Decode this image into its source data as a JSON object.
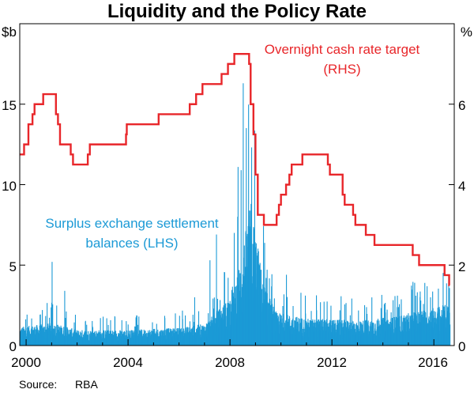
{
  "chart_data": {
    "type": "line+bar",
    "title": "Liquidity and the Policy Rate",
    "left_axis": {
      "unit": "$b",
      "ylim": [
        0,
        20
      ],
      "ticks": [
        0,
        5,
        10,
        15
      ],
      "tick_labels": [
        "0",
        "5",
        "10",
        "15"
      ]
    },
    "right_axis": {
      "unit": "%",
      "ylim": [
        0,
        8
      ],
      "ticks": [
        0,
        2,
        4,
        6
      ],
      "tick_labels": [
        "0",
        "2",
        "4",
        "6"
      ]
    },
    "x_axis": {
      "range": [
        1999.75,
        2016.8
      ],
      "ticks": [
        2000,
        2004,
        2008,
        2012,
        2016
      ],
      "tick_labels": [
        "2000",
        "2004",
        "2008",
        "2012",
        "2016"
      ]
    },
    "annotations": {
      "rate_line1": "Overnight cash rate target",
      "rate_line2": "(RHS)",
      "balances_line1": "Surplus exchange settlement",
      "balances_line2": "balances (LHS)"
    },
    "source_label": "Source:",
    "source_value": "RBA",
    "series": [
      {
        "name": "Overnight cash rate target",
        "axis": "right",
        "color": "#e8262a",
        "type": "step",
        "points": [
          [
            1999.75,
            4.75
          ],
          [
            1999.92,
            5.0
          ],
          [
            2000.09,
            5.5
          ],
          [
            2000.25,
            5.75
          ],
          [
            2000.33,
            6.0
          ],
          [
            2000.67,
            6.25
          ],
          [
            2001.17,
            5.75
          ],
          [
            2001.25,
            5.5
          ],
          [
            2001.33,
            5.0
          ],
          [
            2001.75,
            4.75
          ],
          [
            2001.84,
            4.5
          ],
          [
            2002.42,
            4.75
          ],
          [
            2002.5,
            5.0
          ],
          [
            2003.92,
            5.25
          ],
          [
            2003.95,
            5.5
          ],
          [
            2005.2,
            5.75
          ],
          [
            2006.42,
            6.0
          ],
          [
            2006.67,
            6.25
          ],
          [
            2006.92,
            6.5
          ],
          [
            2007.67,
            6.75
          ],
          [
            2007.92,
            7.0
          ],
          [
            2008.17,
            7.25
          ],
          [
            2008.75,
            7.0
          ],
          [
            2008.81,
            6.0
          ],
          [
            2008.92,
            5.25
          ],
          [
            2009.0,
            4.25
          ],
          [
            2009.09,
            3.25
          ],
          [
            2009.33,
            3.0
          ],
          [
            2009.83,
            3.25
          ],
          [
            2009.92,
            3.5
          ],
          [
            2010.0,
            3.75
          ],
          [
            2010.2,
            4.0
          ],
          [
            2010.33,
            4.25
          ],
          [
            2010.42,
            4.5
          ],
          [
            2010.84,
            4.75
          ],
          [
            2011.84,
            4.5
          ],
          [
            2011.92,
            4.25
          ],
          [
            2012.42,
            3.75
          ],
          [
            2012.5,
            3.5
          ],
          [
            2012.83,
            3.25
          ],
          [
            2012.92,
            3.0
          ],
          [
            2013.33,
            2.75
          ],
          [
            2013.67,
            2.5
          ],
          [
            2015.17,
            2.25
          ],
          [
            2015.42,
            2.0
          ],
          [
            2016.42,
            1.75
          ],
          [
            2016.6,
            1.5
          ]
        ]
      },
      {
        "name": "Surplus exchange settlement balances",
        "axis": "left",
        "color": "#1c9ad6",
        "type": "bar",
        "base_profile": [
          [
            1999.75,
            0.9
          ],
          [
            2000.5,
            1.0
          ],
          [
            2001.0,
            1.1
          ],
          [
            2002.0,
            0.75
          ],
          [
            2004.0,
            0.75
          ],
          [
            2006.0,
            0.85
          ],
          [
            2007.0,
            1.05
          ],
          [
            2007.9,
            2.2
          ],
          [
            2008.4,
            4.0
          ],
          [
            2008.8,
            7.0
          ],
          [
            2009.3,
            3.0
          ],
          [
            2009.8,
            1.6
          ],
          [
            2011.0,
            1.3
          ],
          [
            2013.0,
            1.2
          ],
          [
            2014.5,
            1.4
          ],
          [
            2015.5,
            1.7
          ],
          [
            2016.6,
            2.0
          ]
        ],
        "notable_values": [
          [
            2001.0,
            5.2
          ],
          [
            2001.5,
            3.4
          ],
          [
            2006.6,
            3.0
          ],
          [
            2007.2,
            5.3
          ],
          [
            2007.45,
            6.9
          ],
          [
            2008.15,
            7.0
          ],
          [
            2008.3,
            11.1
          ],
          [
            2008.42,
            10.9
          ],
          [
            2008.5,
            16.3
          ],
          [
            2008.62,
            10.3
          ],
          [
            2008.75,
            7.0
          ],
          [
            2008.9,
            4.5
          ],
          [
            2009.2,
            3.5
          ],
          [
            2009.4,
            4.2
          ],
          [
            2010.2,
            4.4
          ],
          [
            2015.85,
            3.0
          ]
        ]
      }
    ]
  }
}
